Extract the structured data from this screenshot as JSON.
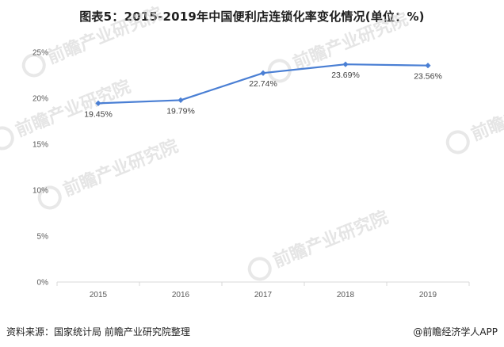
{
  "header": {
    "title": "图表5：2015-2019年中国便利店连锁化率变化情况(单位：%)"
  },
  "footer": {
    "source": "资料来源：国家统计局 前瞻产业研究院整理",
    "brand": "@前瞻经济学人APP"
  },
  "watermark": {
    "text": "前瞻产业研究院"
  },
  "chart_data": {
    "type": "line",
    "title": "图表5：2015-2019年中国便利店连锁化率变化情况(单位：%)",
    "categories": [
      "2015",
      "2016",
      "2017",
      "2018",
      "2019"
    ],
    "series": [
      {
        "values": [
          19.45,
          19.79,
          22.74,
          23.69,
          23.56
        ],
        "labels": [
          "19.45%",
          "19.79%",
          "22.74%",
          "23.69%",
          "23.56%"
        ],
        "color": "#4a7fd4"
      }
    ],
    "y_ticks": [
      "0%",
      "5%",
      "10%",
      "15%",
      "20%",
      "25%"
    ],
    "ylim": [
      0,
      25
    ],
    "grid": false,
    "legend": "none"
  }
}
